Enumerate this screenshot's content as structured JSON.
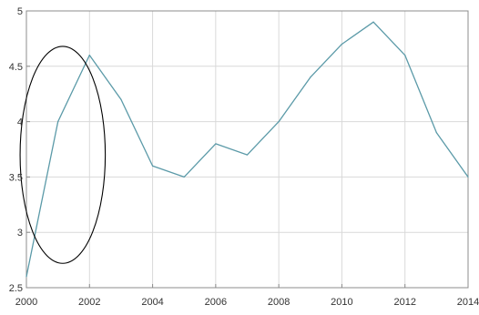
{
  "chart_data": {
    "type": "line",
    "title": "",
    "xlabel": "",
    "ylabel": "",
    "x": [
      2000,
      2001,
      2002,
      2003,
      2004,
      2005,
      2006,
      2007,
      2008,
      2009,
      2010,
      2011,
      2012,
      2013,
      2014
    ],
    "series": [
      {
        "values": [
          2.6,
          4.0,
          4.6,
          4.2,
          3.6,
          3.5,
          3.8,
          3.7,
          4.0,
          4.4,
          4.7,
          4.9,
          4.6,
          3.9,
          3.5
        ]
      }
    ],
    "xlim": [
      2000,
      2014
    ],
    "ylim": [
      2.5,
      5
    ],
    "xticks": [
      "2000",
      "2002",
      "2004",
      "2006",
      "2008",
      "2010",
      "2012",
      "2014"
    ],
    "yticks": [
      "2.5",
      "3",
      "3.5",
      "4",
      "4.5",
      "5"
    ],
    "grid": true,
    "line_color": "#5b9aa8",
    "annotation": {
      "shape": "ellipse",
      "x_range": [
        1999.8,
        2002.5
      ],
      "y_range": [
        2.72,
        4.68
      ]
    }
  }
}
